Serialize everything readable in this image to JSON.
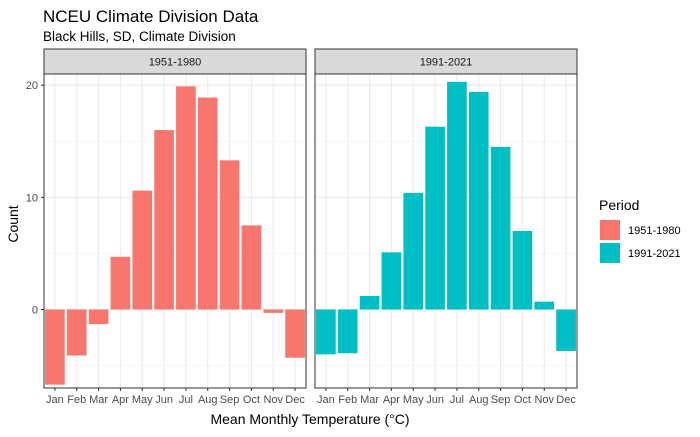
{
  "chart_data": {
    "type": "bar",
    "title": "NCEU Climate Division Data",
    "subtitle": "Black Hills, SD, Climate Division",
    "xlabel": "Mean Monthly Temperature (°C)",
    "ylabel": "Count",
    "categories": [
      "Jan",
      "Feb",
      "Mar",
      "Apr",
      "May",
      "Jun",
      "Jul",
      "Aug",
      "Sep",
      "Oct",
      "Nov",
      "Dec"
    ],
    "ylim": [
      -7.0,
      21.0
    ],
    "yticks": [
      0,
      10,
      20
    ],
    "grid": true,
    "legend": {
      "title": "Period",
      "position": "right"
    },
    "panels": [
      {
        "name": "1951-1980",
        "color": "#F8766D",
        "values": [
          -6.7,
          -4.1,
          -1.3,
          4.7,
          10.6,
          16.0,
          19.9,
          18.9,
          13.3,
          7.5,
          -0.3,
          -4.3
        ]
      },
      {
        "name": "1991-2021",
        "color": "#00BFC4",
        "values": [
          -4.0,
          -3.9,
          1.2,
          5.1,
          10.4,
          16.3,
          20.3,
          19.4,
          14.5,
          7.0,
          0.7,
          -3.7
        ]
      }
    ]
  }
}
